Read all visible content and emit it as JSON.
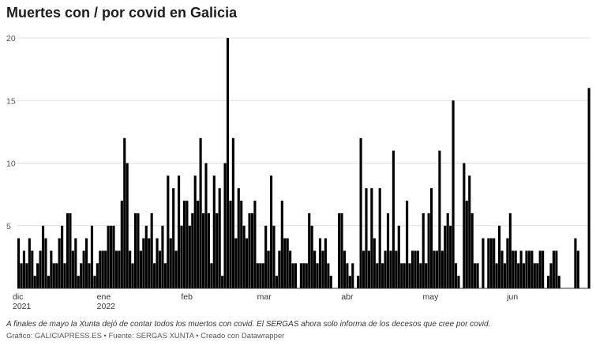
{
  "chart_data": {
    "type": "bar",
    "title": "Muertes con / por covid en Galicia",
    "note": "A finales de mayo la Xunta dejó de contar todos los muertos con covid. El SERGAS ahora solo informa de los decesos que cree por covid.",
    "source": "Gráfico: GALICIAPRESS.ES • Fuente: SERGAS XUNTA • Creado con Datawrapper",
    "color": "#000000",
    "grid": true,
    "ylim": [
      0,
      20
    ],
    "yticks": [
      5,
      10,
      15,
      20
    ],
    "categories": [
      "dic 2021",
      null,
      null,
      null,
      null,
      null,
      null,
      null,
      null,
      null,
      null,
      null,
      null,
      null,
      null,
      null,
      null,
      null,
      null,
      null,
      null,
      null,
      null,
      null,
      null,
      null,
      null,
      null,
      null,
      null,
      null,
      "ene 2022",
      null,
      null,
      null,
      null,
      null,
      null,
      null,
      null,
      null,
      null,
      null,
      null,
      null,
      null,
      null,
      null,
      null,
      null,
      null,
      null,
      null,
      null,
      null,
      null,
      null,
      null,
      null,
      null,
      null,
      null,
      "feb",
      null,
      null,
      null,
      null,
      null,
      null,
      null,
      null,
      null,
      null,
      null,
      null,
      null,
      null,
      null,
      null,
      null,
      null,
      null,
      null,
      null,
      null,
      null,
      null,
      null,
      null,
      null,
      "mar",
      null,
      null,
      null,
      null,
      null,
      null,
      null,
      null,
      null,
      null,
      null,
      null,
      null,
      null,
      null,
      null,
      null,
      null,
      null,
      null,
      null,
      null,
      null,
      null,
      null,
      null,
      null,
      null,
      null,
      null,
      "abr",
      null,
      null,
      null,
      null,
      null,
      null,
      null,
      null,
      null,
      null,
      null,
      null,
      null,
      null,
      null,
      null,
      null,
      null,
      null,
      null,
      null,
      null,
      null,
      null,
      null,
      null,
      null,
      null,
      null,
      "may",
      null,
      null,
      null,
      null,
      null,
      null,
      null,
      null,
      null,
      null,
      null,
      null,
      null,
      null,
      null,
      null,
      null,
      null,
      null,
      null,
      null,
      null,
      null,
      null,
      null,
      null,
      null,
      null,
      null,
      null,
      "jun",
      null,
      null,
      null,
      null,
      null,
      null,
      null,
      null,
      null,
      null,
      null,
      null,
      null,
      null,
      null,
      null,
      null,
      null,
      null,
      null,
      null,
      null,
      null,
      null,
      null,
      null,
      null,
      null
    ],
    "values": [
      4,
      2,
      3,
      2,
      4,
      3,
      1,
      2,
      3,
      5,
      4,
      1,
      3,
      2,
      2,
      4,
      5,
      2,
      6,
      6,
      3,
      4,
      1,
      2,
      3,
      4,
      2,
      5,
      1,
      2,
      3,
      3,
      3,
      5,
      5,
      5,
      3,
      3,
      7,
      12,
      10,
      3,
      2,
      6,
      6,
      3,
      4,
      5,
      4,
      6,
      2,
      4,
      3,
      5,
      2,
      9,
      4,
      8,
      3,
      9,
      5,
      7,
      7,
      5,
      6,
      9,
      7,
      12,
      6,
      10,
      6,
      2,
      9,
      6,
      8,
      1,
      10,
      20,
      7,
      12,
      4,
      8,
      7,
      5,
      4,
      6,
      6,
      7,
      2,
      2,
      2,
      5,
      3,
      9,
      5,
      1,
      3,
      7,
      4,
      4,
      3,
      2,
      2,
      0,
      2,
      2,
      2,
      6,
      5,
      3,
      2,
      4,
      3,
      4,
      2,
      1,
      0,
      0,
      6,
      6,
      3,
      2,
      1,
      2,
      0,
      1,
      12,
      3,
      8,
      3,
      8,
      4,
      2,
      8,
      2,
      3,
      6,
      3,
      11,
      3,
      5,
      2,
      2,
      7,
      2,
      3,
      3,
      3,
      2,
      6,
      2,
      6,
      8,
      3,
      3,
      11,
      3,
      5,
      6,
      5,
      15,
      2,
      1,
      0,
      10,
      7,
      9,
      6,
      2,
      2,
      0,
      4,
      0,
      4,
      4,
      4,
      2,
      5,
      3,
      2,
      4,
      6,
      3,
      3,
      2,
      3,
      2,
      3,
      3,
      3,
      2,
      2,
      3,
      3,
      0,
      1,
      2,
      3,
      3,
      1,
      0,
      0,
      0,
      0,
      0,
      4,
      3,
      0,
      0,
      0,
      16
    ]
  }
}
